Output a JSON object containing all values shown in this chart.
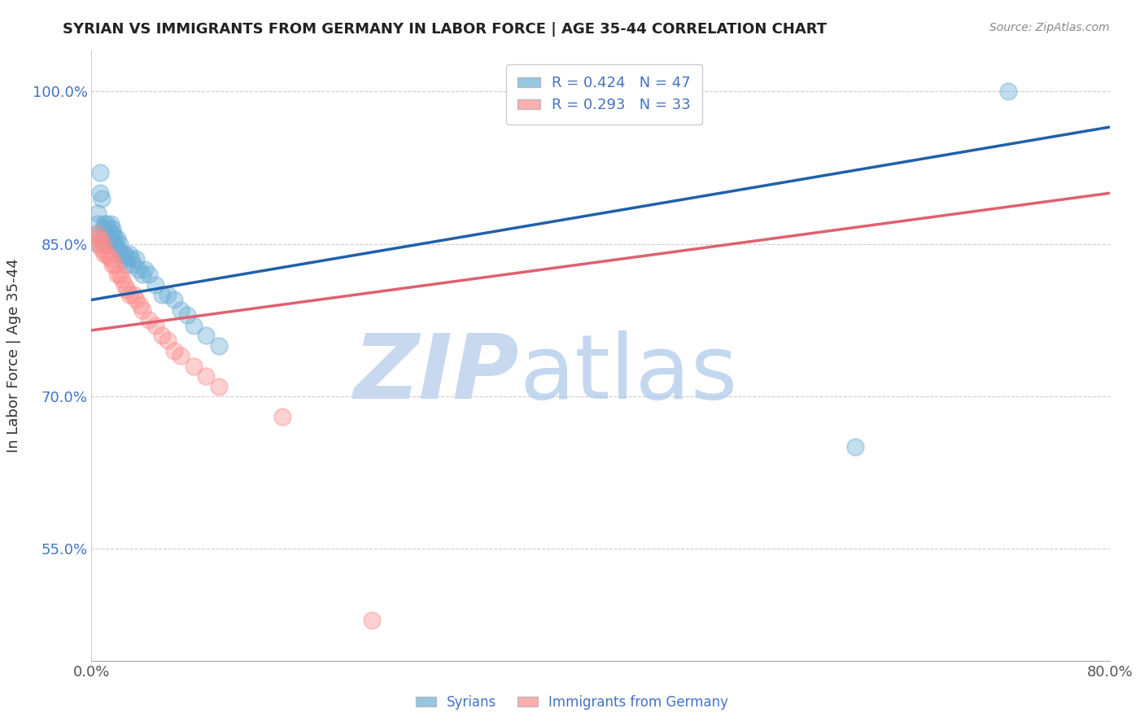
{
  "title": "SYRIAN VS IMMIGRANTS FROM GERMANY IN LABOR FORCE | AGE 35-44 CORRELATION CHART",
  "source_text": "Source: ZipAtlas.com",
  "ylabel": "In Labor Force | Age 35-44",
  "xlim": [
    0.0,
    0.8
  ],
  "ylim": [
    0.44,
    1.04
  ],
  "xtick_positions": [
    0.0,
    0.2,
    0.4,
    0.6,
    0.8
  ],
  "xtick_labels": [
    "0.0%",
    "",
    "",
    "",
    "80.0%"
  ],
  "ytick_positions": [
    0.55,
    0.7,
    0.85,
    1.0
  ],
  "ytick_labels": [
    "55.0%",
    "70.0%",
    "85.0%",
    "100.0%"
  ],
  "legend_entries": [
    {
      "label": "R = 0.424   N = 47",
      "color": "#6baed6"
    },
    {
      "label": "R = 0.293   N = 33",
      "color": "#fc8d8d"
    }
  ],
  "syrians_color": "#6baed6",
  "germany_color": "#fc8d8d",
  "blue_line_color": "#2060aa",
  "pink_line_color": "#e06070",
  "grid_color": "#cccccc",
  "watermark_zip": "ZIP",
  "watermark_atlas": "atlas",
  "watermark_color_zip": "#c8d8ee",
  "watermark_color_atlas": "#aac8e8",
  "syrians_x": [
    0.005,
    0.005,
    0.005,
    0.005,
    0.007,
    0.007,
    0.008,
    0.01,
    0.01,
    0.01,
    0.012,
    0.013,
    0.013,
    0.015,
    0.015,
    0.016,
    0.017,
    0.018,
    0.018,
    0.019,
    0.02,
    0.021,
    0.022,
    0.023,
    0.025,
    0.026,
    0.027,
    0.028,
    0.03,
    0.031,
    0.033,
    0.035,
    0.037,
    0.04,
    0.042,
    0.045,
    0.05,
    0.055,
    0.06,
    0.065,
    0.07,
    0.075,
    0.08,
    0.09,
    0.1,
    0.6,
    0.72
  ],
  "syrians_y": [
    0.88,
    0.87,
    0.86,
    0.85,
    0.92,
    0.9,
    0.895,
    0.87,
    0.865,
    0.855,
    0.87,
    0.865,
    0.85,
    0.87,
    0.86,
    0.865,
    0.86,
    0.855,
    0.85,
    0.848,
    0.855,
    0.845,
    0.85,
    0.84,
    0.835,
    0.84,
    0.838,
    0.83,
    0.84,
    0.835,
    0.83,
    0.835,
    0.825,
    0.82,
    0.825,
    0.82,
    0.81,
    0.8,
    0.8,
    0.795,
    0.785,
    0.78,
    0.77,
    0.76,
    0.75,
    0.65,
    1.0
  ],
  "germany_x": [
    0.004,
    0.005,
    0.006,
    0.007,
    0.008,
    0.009,
    0.01,
    0.012,
    0.014,
    0.015,
    0.016,
    0.018,
    0.02,
    0.022,
    0.024,
    0.026,
    0.028,
    0.03,
    0.033,
    0.035,
    0.038,
    0.04,
    0.045,
    0.05,
    0.055,
    0.06,
    0.065,
    0.07,
    0.08,
    0.09,
    0.1,
    0.15,
    0.22
  ],
  "germany_y": [
    0.86,
    0.855,
    0.85,
    0.855,
    0.845,
    0.85,
    0.84,
    0.84,
    0.838,
    0.835,
    0.83,
    0.83,
    0.82,
    0.82,
    0.815,
    0.81,
    0.805,
    0.8,
    0.8,
    0.795,
    0.79,
    0.785,
    0.775,
    0.77,
    0.76,
    0.755,
    0.745,
    0.74,
    0.73,
    0.72,
    0.71,
    0.68,
    0.48
  ],
  "blue_trendline_x": [
    0.0,
    0.8
  ],
  "blue_trendline_y": [
    0.795,
    0.965
  ],
  "pink_trendline_x": [
    0.0,
    0.8
  ],
  "pink_trendline_y": [
    0.765,
    0.9
  ]
}
